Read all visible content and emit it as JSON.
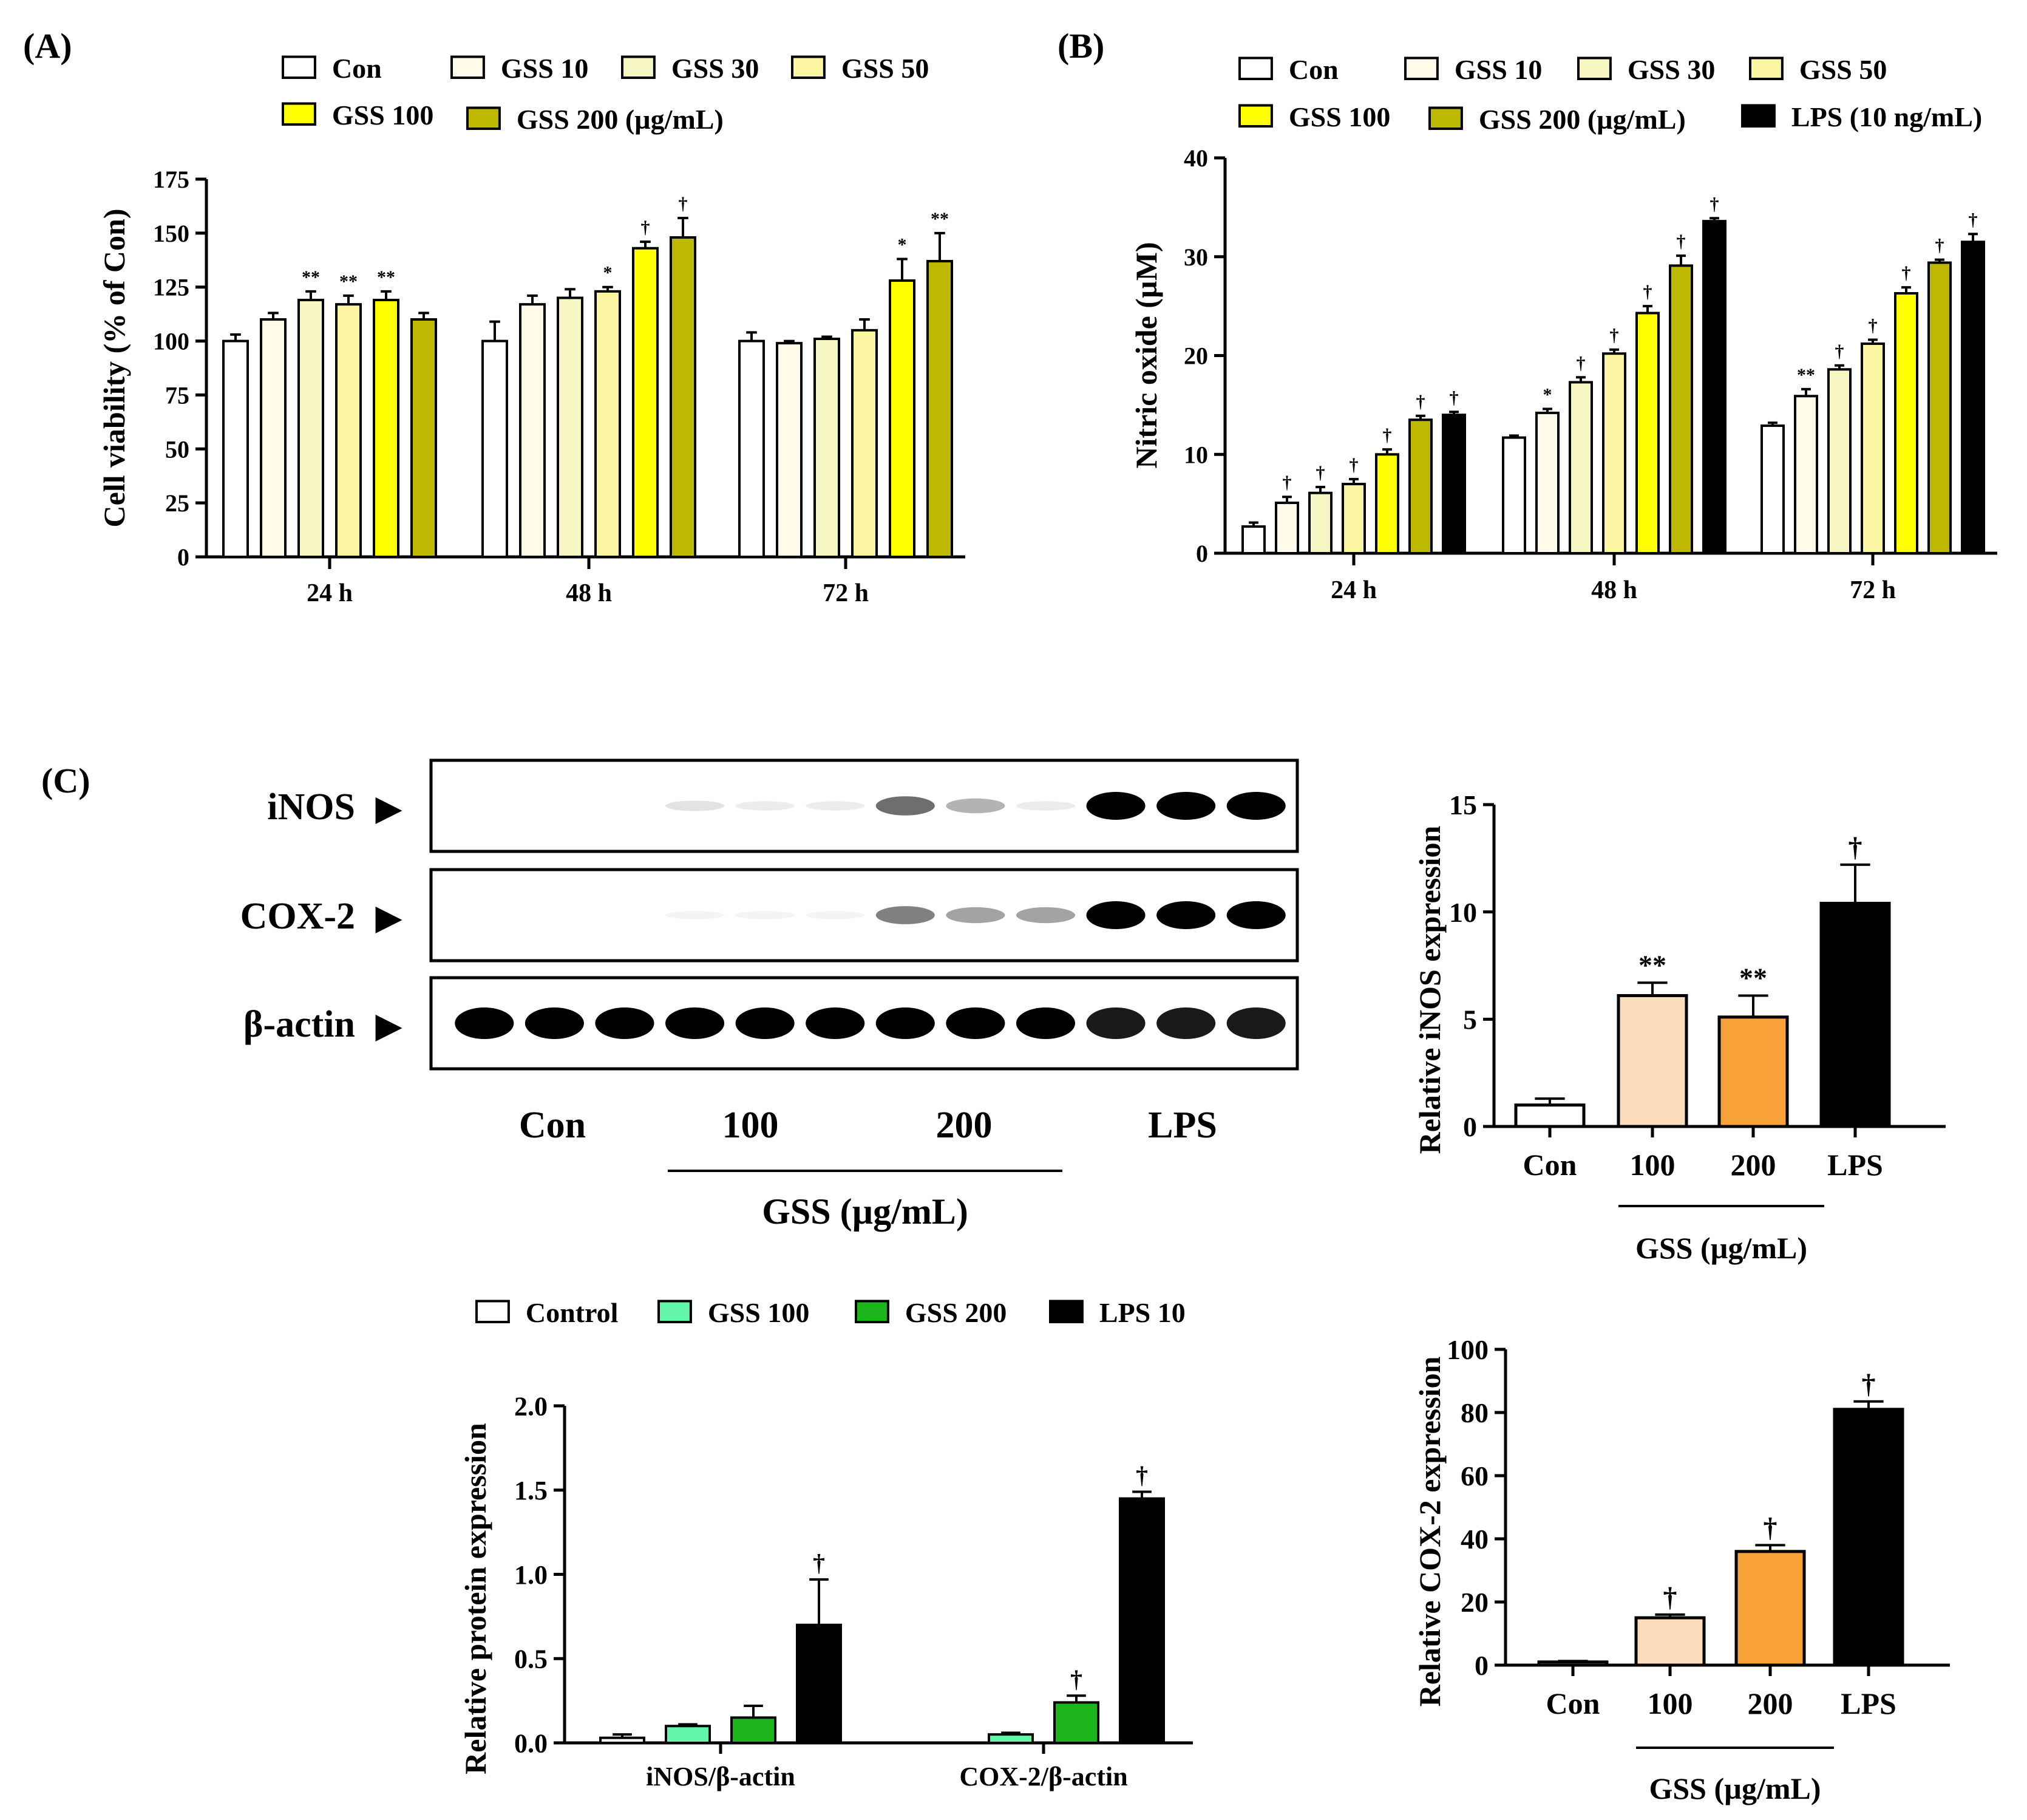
{
  "panels": {
    "A": {
      "label": "(A)",
      "chart_data": {
        "type": "bar",
        "ylabel": "Cell viability (% of Con)",
        "ylim": [
          0,
          175
        ],
        "yticks": [
          0,
          25,
          50,
          75,
          100,
          125,
          150,
          175
        ],
        "categories": [
          "24 h",
          "48 h",
          "72 h"
        ],
        "legend": [
          "Con",
          "GSS 10",
          "GSS 30",
          "GSS 50",
          "GSS 100",
          "GSS 200 (µg/mL)"
        ],
        "colors": [
          "#ffffff",
          "#fffbe8",
          "#f6f7c2",
          "#fcf5a2",
          "#ffff00",
          "#bdb800"
        ],
        "series": [
          {
            "name": "Con",
            "values": [
              100,
              100,
              100
            ],
            "err": [
              3,
              9,
              4
            ],
            "sig": [
              "",
              "",
              ""
            ]
          },
          {
            "name": "GSS 10",
            "values": [
              110,
              117,
              99
            ],
            "err": [
              3,
              4,
              1
            ],
            "sig": [
              "",
              "",
              ""
            ]
          },
          {
            "name": "GSS 30",
            "values": [
              119,
              120,
              101
            ],
            "err": [
              4,
              4,
              1
            ],
            "sig": [
              "**",
              "",
              ""
            ]
          },
          {
            "name": "GSS 50",
            "values": [
              117,
              123,
              105
            ],
            "err": [
              4,
              2,
              5
            ],
            "sig": [
              "**",
              "*",
              ""
            ]
          },
          {
            "name": "GSS 100",
            "values": [
              119,
              143,
              128
            ],
            "err": [
              4,
              3,
              10
            ],
            "sig": [
              "**",
              "†",
              "*"
            ]
          },
          {
            "name": "GSS 200",
            "values": [
              110,
              148,
              137
            ],
            "err": [
              3,
              9,
              13
            ],
            "sig": [
              "",
              "†",
              "**"
            ]
          }
        ]
      }
    },
    "B": {
      "label": "(B)",
      "chart_data": {
        "type": "bar",
        "ylabel": "Nitric oxide (µM)",
        "ylim": [
          0,
          40
        ],
        "yticks": [
          0,
          10,
          20,
          30,
          40
        ],
        "categories": [
          "24 h",
          "48 h",
          "72 h"
        ],
        "legend": [
          "Con",
          "GSS 10",
          "GSS 30",
          "GSS 50",
          "GSS 100",
          "GSS 200 (µg/mL)",
          "LPS (10 ng/mL)"
        ],
        "colors": [
          "#ffffff",
          "#fffbe8",
          "#f6f7c2",
          "#fcf5a2",
          "#ffff00",
          "#bdb800",
          "#000000"
        ],
        "series": [
          {
            "name": "Con",
            "values": [
              2.7,
              11.7,
              12.9
            ],
            "err": [
              0.4,
              0.2,
              0.3
            ],
            "sig": [
              "",
              "",
              ""
            ]
          },
          {
            "name": "GSS 10",
            "values": [
              5.1,
              14.2,
              15.9
            ],
            "err": [
              0.6,
              0.4,
              0.7
            ],
            "sig": [
              "†",
              "*",
              "**"
            ]
          },
          {
            "name": "GSS 30",
            "values": [
              6.1,
              17.3,
              18.6
            ],
            "err": [
              0.6,
              0.5,
              0.4
            ],
            "sig": [
              "†",
              "†",
              "†"
            ]
          },
          {
            "name": "GSS 50",
            "values": [
              7.0,
              20.2,
              21.2
            ],
            "err": [
              0.5,
              0.4,
              0.4
            ],
            "sig": [
              "†",
              "†",
              "†"
            ]
          },
          {
            "name": "GSS 100",
            "values": [
              10.0,
              24.3,
              26.3
            ],
            "err": [
              0.5,
              0.7,
              0.6
            ],
            "sig": [
              "†",
              "†",
              "†"
            ]
          },
          {
            "name": "GSS 200",
            "values": [
              13.5,
              29.1,
              29.4
            ],
            "err": [
              0.4,
              1.0,
              0.3
            ],
            "sig": [
              "†",
              "†",
              "†"
            ]
          },
          {
            "name": "LPS",
            "values": [
              14.0,
              33.6,
              31.5
            ],
            "err": [
              0.3,
              0.3,
              0.8
            ],
            "sig": [
              "†",
              "†",
              "†"
            ]
          }
        ]
      }
    },
    "C": {
      "label": "(C)",
      "blot": {
        "rows": [
          "iNOS",
          "COX-2",
          "β-actin"
        ],
        "lanes": [
          "Con",
          "100",
          "200",
          "LPS"
        ],
        "group_label": "GSS (µg/mL)",
        "arrow": "▶",
        "intensity": {
          "iNOS": [
            0,
            0,
            0,
            0.2,
            0.15,
            0.15,
            0.6,
            0.4,
            0.15,
            1,
            1,
            1
          ],
          "COX-2": [
            0,
            0,
            0,
            0.1,
            0.1,
            0.1,
            0.55,
            0.45,
            0.45,
            1,
            1,
            1
          ],
          "β-actin": [
            1,
            1,
            1,
            1,
            1,
            1,
            1,
            1,
            1,
            0.9,
            0.9,
            0.9
          ]
        }
      },
      "inos_chart": {
        "chart_data": {
          "type": "bar",
          "ylabel": "Relative iNOS expression",
          "ylim": [
            0,
            15
          ],
          "yticks": [
            0,
            5,
            10,
            15
          ],
          "categories": [
            "Con",
            "100",
            "200",
            "LPS"
          ],
          "values": [
            1.0,
            6.1,
            5.1,
            10.4
          ],
          "err": [
            0.3,
            0.6,
            1.0,
            1.8
          ],
          "sig": [
            "",
            "**",
            "**",
            "†"
          ],
          "colors": [
            "#ffffff",
            "#fddcbc",
            "#f9a23a",
            "#000000"
          ],
          "group_label": "GSS (µg/mL)"
        }
      },
      "cox2_chart": {
        "chart_data": {
          "type": "bar",
          "ylabel": "Relative COX-2 expression",
          "ylim": [
            0,
            100
          ],
          "yticks": [
            0,
            20,
            40,
            60,
            80,
            100
          ],
          "categories": [
            "Con",
            "100",
            "200",
            "LPS"
          ],
          "values": [
            1.0,
            15.0,
            36.0,
            81.0
          ],
          "err": [
            0.3,
            1.0,
            2.0,
            2.5
          ],
          "sig": [
            "",
            "†",
            "†",
            "†"
          ],
          "colors": [
            "#ffffff",
            "#fddcbc",
            "#f9a23a",
            "#000000"
          ],
          "group_label": "GSS (µg/mL)"
        }
      },
      "protein_chart": {
        "chart_data": {
          "type": "bar",
          "ylabel": "Relative protein expression",
          "ylim": [
            0,
            2.0
          ],
          "yticks": [
            "0.0",
            "0.5",
            "1.0",
            "1.5",
            "2.0"
          ],
          "categories": [
            "iNOS/β-actin",
            "COX-2/β-actin"
          ],
          "legend": [
            "Control",
            "GSS 100",
            "GSS 200",
            "LPS 10"
          ],
          "colors": [
            "#ffffff",
            "#63f5a8",
            "#1cb51c",
            "#000000"
          ],
          "series": [
            {
              "name": "Control",
              "values": [
                0.03,
                0.0
              ],
              "err": [
                0.02,
                0.0
              ],
              "sig": [
                "",
                ""
              ]
            },
            {
              "name": "GSS 100",
              "values": [
                0.1,
                0.05
              ],
              "err": [
                0.01,
                0.01
              ],
              "sig": [
                "",
                ""
              ]
            },
            {
              "name": "GSS 200",
              "values": [
                0.15,
                0.24
              ],
              "err": [
                0.07,
                0.04
              ],
              "sig": [
                "",
                "†"
              ]
            },
            {
              "name": "LPS 10",
              "values": [
                0.7,
                1.45
              ],
              "err": [
                0.27,
                0.04
              ],
              "sig": [
                "†",
                "†"
              ]
            }
          ]
        }
      }
    }
  }
}
